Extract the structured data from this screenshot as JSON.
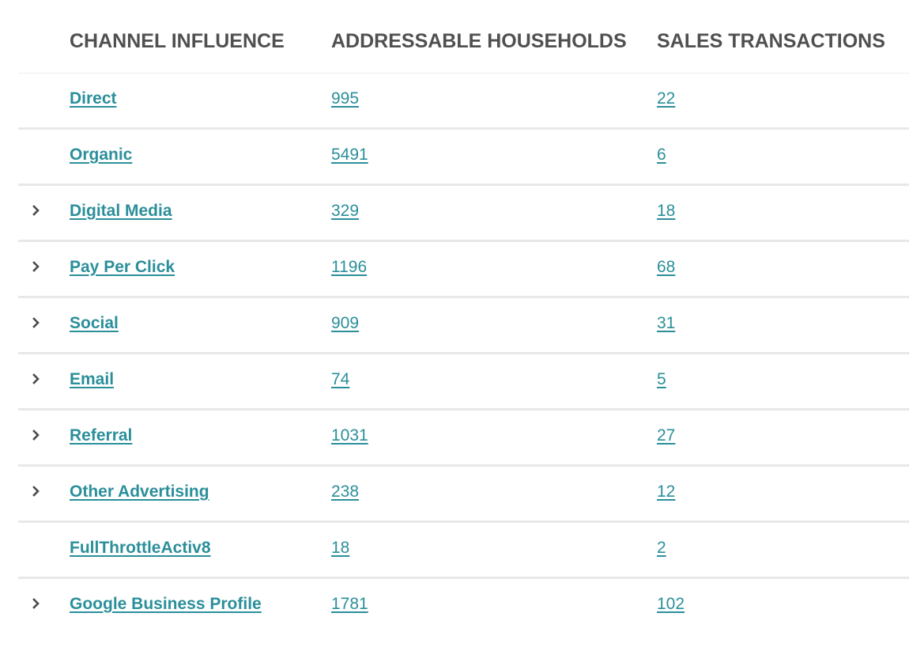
{
  "headers": {
    "channel": "CHANNEL INFLUENCE",
    "households": "ADDRESSABLE HOUSEHOLDS",
    "sales": "SALES TRANSACTIONS"
  },
  "rows": [
    {
      "name": "Direct",
      "households": "995",
      "sales": "22",
      "expandable": false
    },
    {
      "name": "Organic",
      "households": "5491",
      "sales": "6",
      "expandable": false
    },
    {
      "name": "Digital Media",
      "households": "329",
      "sales": "18",
      "expandable": true
    },
    {
      "name": "Pay Per Click",
      "households": "1196",
      "sales": "68",
      "expandable": true
    },
    {
      "name": "Social",
      "households": "909",
      "sales": "31",
      "expandable": true
    },
    {
      "name": "Email",
      "households": "74",
      "sales": "5",
      "expandable": true
    },
    {
      "name": "Referral",
      "households": "1031",
      "sales": "27",
      "expandable": true
    },
    {
      "name": "Other Advertising",
      "households": "238",
      "sales": "12",
      "expandable": true
    },
    {
      "name": "FullThrottleActiv8",
      "households": "18",
      "sales": "2",
      "expandable": false
    },
    {
      "name": "Google Business Profile",
      "households": "1781",
      "sales": "102",
      "expandable": true
    }
  ],
  "icons": {
    "expand": "chevron-right-icon"
  },
  "colors": {
    "link": "#2b8f9a",
    "header_text": "#505050",
    "row_divider": "#e8e8e8"
  }
}
